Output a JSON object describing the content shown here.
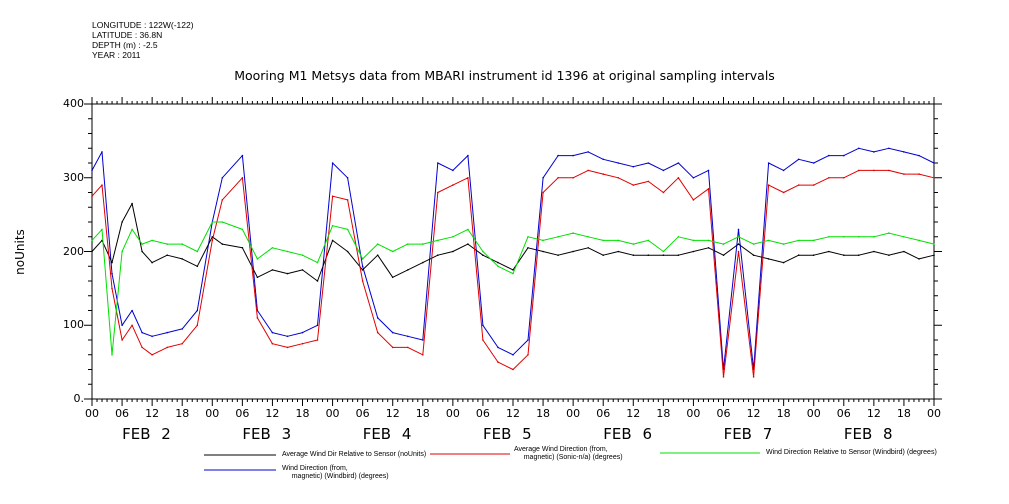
{
  "meta": {
    "longitude": "LONGITUDE : 122W(-122)",
    "latitude": "LATITUDE : 36.8N",
    "depth": "DEPTH (m) : -2.5",
    "year": "YEAR : 2011"
  },
  "colors": {
    "series1": "#000000",
    "series2": "#e00000",
    "series3": "#00e000",
    "series4": "#0000d0"
  },
  "chart_data": {
    "type": "line",
    "title": "Mooring M1 Metsys data from MBARI instrument id 1396 at original sampling intervals",
    "xlabel": "",
    "ylabel": "noUnits",
    "ylim": [
      0,
      400
    ],
    "yticks": [
      "0.",
      "100",
      "200",
      "300",
      "400"
    ],
    "xlim_hours": [
      0,
      168
    ],
    "xtick_labels": [
      "00",
      "06",
      "12",
      "18",
      "00",
      "06",
      "12",
      "18",
      "00",
      "06",
      "12",
      "18",
      "00",
      "06",
      "12",
      "18",
      "00",
      "06",
      "12",
      "18",
      "00",
      "06",
      "12",
      "18",
      "00",
      "06",
      "12",
      "18",
      "00"
    ],
    "day_labels": [
      "FEB  2",
      "FEB  3",
      "FEB  4",
      "FEB  5",
      "FEB  6",
      "FEB  7",
      "FEB  8"
    ],
    "grid": false,
    "legend_placement": "bottom",
    "series": [
      {
        "name": "Average Wind Dir Relative to Sensor (noUnits)",
        "color": "#000000",
        "x_hours": [
          0,
          2,
          4,
          6,
          8,
          10,
          12,
          15,
          18,
          21,
          24,
          26,
          30,
          33,
          36,
          39,
          42,
          45,
          48,
          51,
          54,
          57,
          60,
          63,
          66,
          69,
          72,
          75,
          78,
          81,
          84,
          87,
          90,
          93,
          96,
          99,
          102,
          105,
          108,
          111,
          114,
          117,
          120,
          123,
          126,
          129,
          132,
          135,
          138,
          141,
          144,
          147,
          150,
          153,
          156,
          159,
          162,
          165,
          168
        ],
        "values": [
          200,
          215,
          185,
          240,
          265,
          200,
          185,
          195,
          190,
          180,
          220,
          210,
          205,
          165,
          175,
          170,
          175,
          160,
          215,
          200,
          175,
          195,
          165,
          175,
          185,
          195,
          200,
          210,
          195,
          185,
          175,
          205,
          200,
          195,
          200,
          205,
          195,
          200,
          195,
          195,
          195,
          195,
          200,
          205,
          195,
          210,
          195,
          190,
          185,
          195,
          195,
          200,
          195,
          195,
          200,
          195,
          200,
          190,
          195
        ]
      },
      {
        "name": "Average Wind Direction (from, magnetic) (Sonic-n/a) (degrees)",
        "color": "#e00000",
        "x_hours": [
          0,
          2,
          4,
          6,
          8,
          10,
          12,
          15,
          18,
          21,
          24,
          26,
          30,
          33,
          36,
          39,
          42,
          45,
          48,
          51,
          54,
          57,
          60,
          63,
          66,
          69,
          72,
          75,
          78,
          81,
          84,
          87,
          90,
          93,
          96,
          99,
          102,
          105,
          108,
          111,
          114,
          117,
          120,
          123,
          126,
          129,
          132,
          135,
          138,
          141,
          144,
          147,
          150,
          153,
          156,
          159,
          162,
          165,
          168
        ],
        "values": [
          275,
          290,
          150,
          80,
          100,
          70,
          60,
          70,
          75,
          100,
          215,
          270,
          300,
          110,
          75,
          70,
          75,
          80,
          275,
          270,
          160,
          90,
          70,
          70,
          60,
          280,
          290,
          300,
          80,
          50,
          40,
          60,
          280,
          300,
          300,
          310,
          305,
          300,
          290,
          295,
          280,
          300,
          270,
          285,
          30,
          200,
          30,
          290,
          280,
          290,
          290,
          300,
          300,
          310,
          310,
          310,
          305,
          305,
          300
        ]
      },
      {
        "name": "Wind Direction Relative to Sensor (Windbird) (degrees)",
        "color": "#00e000",
        "x_hours": [
          0,
          2,
          4,
          6,
          8,
          10,
          12,
          15,
          18,
          21,
          24,
          26,
          30,
          33,
          36,
          39,
          42,
          45,
          48,
          51,
          54,
          57,
          60,
          63,
          66,
          69,
          72,
          75,
          78,
          81,
          84,
          87,
          90,
          93,
          96,
          99,
          102,
          105,
          108,
          111,
          114,
          117,
          120,
          123,
          126,
          129,
          132,
          135,
          138,
          141,
          144,
          147,
          150,
          153,
          156,
          159,
          162,
          165,
          168
        ],
        "values": [
          215,
          230,
          60,
          200,
          230,
          210,
          215,
          210,
          210,
          200,
          240,
          240,
          230,
          190,
          205,
          200,
          195,
          185,
          235,
          230,
          190,
          210,
          200,
          210,
          210,
          215,
          220,
          230,
          200,
          180,
          170,
          220,
          215,
          220,
          225,
          220,
          215,
          215,
          210,
          215,
          200,
          220,
          215,
          215,
          210,
          220,
          210,
          215,
          210,
          215,
          215,
          220,
          220,
          220,
          220,
          225,
          220,
          215,
          210
        ]
      },
      {
        "name": "Wind Direction (from, magnetic) (Windbird) (degrees)",
        "color": "#0000d0",
        "x_hours": [
          0,
          2,
          4,
          6,
          8,
          10,
          12,
          15,
          18,
          21,
          24,
          26,
          30,
          33,
          36,
          39,
          42,
          45,
          48,
          51,
          54,
          57,
          60,
          63,
          66,
          69,
          72,
          75,
          78,
          81,
          84,
          87,
          90,
          93,
          96,
          99,
          102,
          105,
          108,
          111,
          114,
          117,
          120,
          123,
          126,
          129,
          132,
          135,
          138,
          141,
          144,
          147,
          150,
          153,
          156,
          159,
          162,
          165,
          168
        ],
        "values": [
          310,
          335,
          170,
          100,
          120,
          90,
          85,
          90,
          95,
          120,
          240,
          300,
          330,
          120,
          90,
          85,
          90,
          100,
          320,
          300,
          180,
          110,
          90,
          85,
          80,
          320,
          310,
          330,
          100,
          70,
          60,
          80,
          300,
          330,
          330,
          335,
          325,
          320,
          315,
          320,
          310,
          320,
          300,
          310,
          40,
          230,
          40,
          320,
          310,
          325,
          320,
          330,
          330,
          340,
          335,
          340,
          335,
          330,
          320
        ]
      }
    ]
  },
  "legend": {
    "items": [
      {
        "line1": "Average Wind Dir Relative to Sensor (noUnits)",
        "line2": ""
      },
      {
        "line1": "Average Wind Direction (from,",
        "line2": "magnetic) (Sonic-n/a) (degrees)"
      },
      {
        "line1": "Wind Direction Relative to Sensor (Windbird) (degrees)",
        "line2": ""
      },
      {
        "line1": "Wind Direction (from,",
        "line2": "magnetic) (Windbird) (degrees)"
      }
    ]
  }
}
